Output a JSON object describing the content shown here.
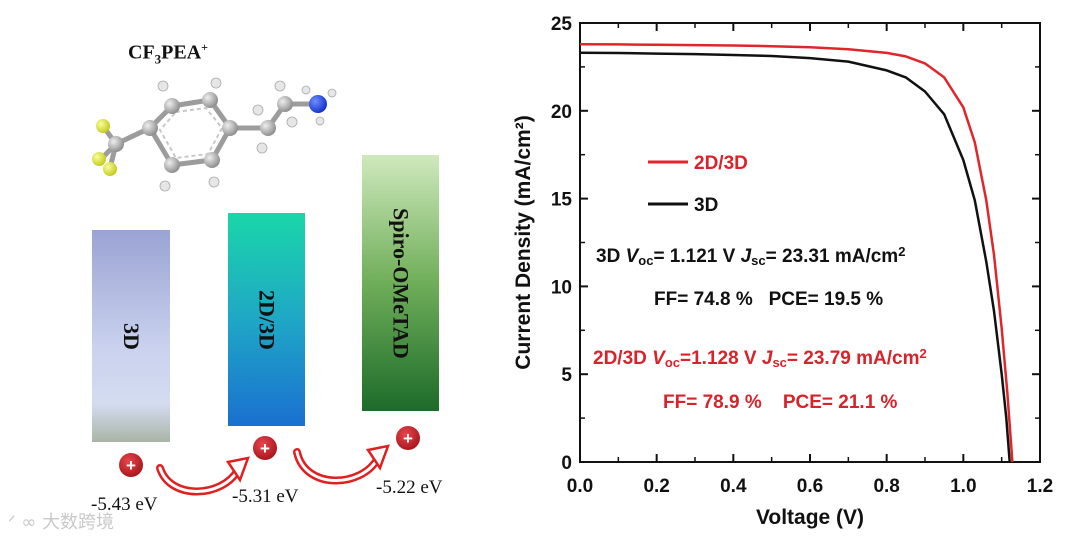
{
  "schematic": {
    "molecule_title": {
      "base": "CF",
      "sub": "3",
      "mid": "PEA",
      "sup": "+"
    },
    "bands": [
      {
        "label": "3D",
        "energy": "-5.43 eV"
      },
      {
        "label": "2D/3D",
        "energy": "-5.31 eV"
      },
      {
        "label": "Spiro-OMeTAD",
        "energy": "-5.22 eV"
      }
    ],
    "hole_symbol": "+",
    "colors": {
      "hole": "#c2181f",
      "arrow": "#e02020"
    }
  },
  "chart_data": {
    "type": "line",
    "xlabel": "Voltage (V)",
    "ylabel": "Current Density (mA/cm²)",
    "xlim": [
      0.0,
      1.2
    ],
    "ylim": [
      0,
      25
    ],
    "xticks": [
      "0.0",
      "0.2",
      "0.4",
      "0.6",
      "0.8",
      "1.0",
      "1.2"
    ],
    "yticks": [
      "0",
      "5",
      "10",
      "15",
      "20",
      "25"
    ],
    "grid": false,
    "legend_position": "upper-left",
    "series": [
      {
        "name": "2D/3D",
        "color": "#e0262b",
        "x": [
          0.0,
          0.1,
          0.2,
          0.3,
          0.4,
          0.5,
          0.6,
          0.7,
          0.8,
          0.85,
          0.9,
          0.95,
          1.0,
          1.03,
          1.06,
          1.08,
          1.1,
          1.115,
          1.128
        ],
        "y": [
          23.79,
          23.78,
          23.76,
          23.74,
          23.72,
          23.68,
          23.62,
          23.5,
          23.3,
          23.1,
          22.7,
          21.9,
          20.2,
          18.2,
          14.9,
          11.8,
          7.6,
          3.9,
          0
        ]
      },
      {
        "name": "3D",
        "color": "#111111",
        "x": [
          0.0,
          0.1,
          0.2,
          0.3,
          0.4,
          0.5,
          0.6,
          0.7,
          0.8,
          0.85,
          0.9,
          0.95,
          1.0,
          1.03,
          1.06,
          1.08,
          1.1,
          1.112,
          1.121
        ],
        "y": [
          23.31,
          23.29,
          23.26,
          23.23,
          23.18,
          23.12,
          23.0,
          22.8,
          22.3,
          21.9,
          21.1,
          19.8,
          17.2,
          14.9,
          11.4,
          8.6,
          5.0,
          2.5,
          0
        ]
      }
    ],
    "annotations": [
      {
        "color": "#111111",
        "line1": {
          "label": "3D",
          "voc_sub": "oc",
          "voc_value": "= 1.121 V",
          "jsc_sub": "sc",
          "jsc_value": "= 23.31 mA/cm",
          "jsc_sup": "2"
        },
        "line2": "FF= 74.8 %   PCE= 19.5 %"
      },
      {
        "color": "#d8232a",
        "line1": {
          "label": "2D/3D",
          "voc_sub": "oc",
          "voc_value": "=1.128 V",
          "jsc_sub": "sc",
          "jsc_value": "= 23.79 mA/cm",
          "jsc_sup": "2"
        },
        "line2": "FF= 78.9 %    PCE= 21.1 %"
      }
    ]
  },
  "watermark": "大数跨境"
}
